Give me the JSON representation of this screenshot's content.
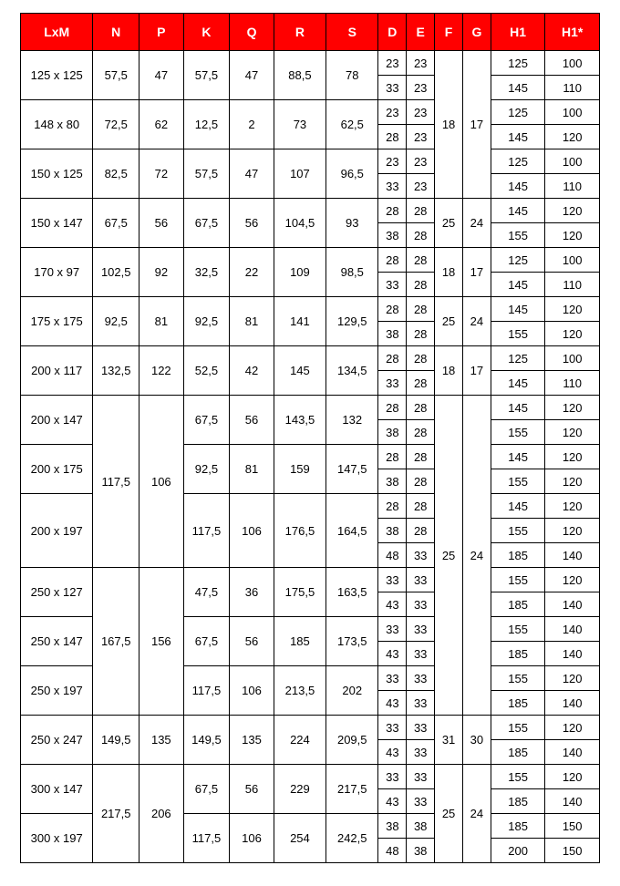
{
  "headers": [
    "LxM",
    "N",
    "P",
    "K",
    "Q",
    "R",
    "S",
    "D",
    "E",
    "F",
    "G",
    "H1",
    "H1*"
  ],
  "colClasses": [
    "c-lxm",
    "c-n",
    "c-p",
    "c-k",
    "c-q",
    "c-r",
    "c-s",
    "c-d",
    "c-e",
    "c-f",
    "c-g",
    "c-h1",
    "c-h1s"
  ],
  "style": {
    "header_bg": "#ff0000",
    "header_fg": "#ffffff",
    "border_color": "#000000",
    "background": "#ffffff",
    "font_family": "Arial",
    "header_fontsize": 14,
    "cell_fontsize": 13
  },
  "blocks": [
    {
      "f": "18",
      "g": "17",
      "fg_rowspan": 6,
      "rows": [
        {
          "lxm": "125 x 125",
          "n": "57,5",
          "p": "47",
          "k": "57,5",
          "q": "47",
          "r": "88,5",
          "s": "78",
          "de": [
            [
              "23",
              "23"
            ],
            [
              "33",
              "23"
            ]
          ],
          "h1": [
            "125",
            "145"
          ],
          "h1s": [
            "100",
            "110"
          ]
        },
        {
          "lxm": "148 x  80",
          "n": "72,5",
          "p": "62",
          "k": "12,5",
          "q": "2",
          "r": "73",
          "s": "62,5",
          "de": [
            [
              "23",
              "23"
            ],
            [
              "28",
              "23"
            ]
          ],
          "h1": [
            "125",
            "145"
          ],
          "h1s": [
            "100",
            "120"
          ]
        },
        {
          "lxm": "150 x 125",
          "n": "82,5",
          "p": "72",
          "k": "57,5",
          "q": "47",
          "r": "107",
          "s": "96,5",
          "de": [
            [
              "23",
              "23"
            ],
            [
              "33",
              "23"
            ]
          ],
          "h1": [
            "125",
            "145"
          ],
          "h1s": [
            "100",
            "110"
          ]
        }
      ]
    },
    {
      "f": "25",
      "g": "24",
      "fg_rowspan": 2,
      "rows": [
        {
          "lxm": "150 x 147",
          "n": "67,5",
          "p": "56",
          "k": "67,5",
          "q": "56",
          "r": "104,5",
          "s": "93",
          "de": [
            [
              "28",
              "28"
            ],
            [
              "38",
              "28"
            ]
          ],
          "h1": [
            "145",
            "155"
          ],
          "h1s": [
            "120",
            "120"
          ]
        }
      ]
    },
    {
      "f": "18",
      "g": "17",
      "fg_rowspan": 2,
      "rows": [
        {
          "lxm": "170 x  97",
          "n": "102,5",
          "p": "92",
          "k": "32,5",
          "q": "22",
          "r": "109",
          "s": "98,5",
          "de": [
            [
              "28",
              "28"
            ],
            [
              "33",
              "28"
            ]
          ],
          "h1": [
            "125",
            "145"
          ],
          "h1s": [
            "100",
            "110"
          ]
        }
      ]
    },
    {
      "f": "25",
      "g": "24",
      "fg_rowspan": 2,
      "rows": [
        {
          "lxm": "175 x 175",
          "n": "92,5",
          "p": "81",
          "k": "92,5",
          "q": "81",
          "r": "141",
          "s": "129,5",
          "de": [
            [
              "28",
              "28"
            ],
            [
              "38",
              "28"
            ]
          ],
          "h1": [
            "145",
            "155"
          ],
          "h1s": [
            "120",
            "120"
          ]
        }
      ]
    },
    {
      "f": "18",
      "g": "17",
      "fg_rowspan": 2,
      "rows": [
        {
          "lxm": "200 x 117",
          "n": "132,5",
          "p": "122",
          "k": "52,5",
          "q": "42",
          "r": "145",
          "s": "134,5",
          "de": [
            [
              "28",
              "28"
            ],
            [
              "33",
              "28"
            ]
          ],
          "h1": [
            "125",
            "145"
          ],
          "h1s": [
            "100",
            "110"
          ]
        }
      ]
    },
    {
      "type": "group3",
      "n": "117,5",
      "p": "106",
      "f": "25",
      "g": "24",
      "fg_rowspan": 13,
      "rows": [
        {
          "lxm": "200 x 147",
          "k": "67,5",
          "q": "56",
          "r": "143,5",
          "s": "132",
          "de": [
            [
              "28",
              "28"
            ],
            [
              "38",
              "28"
            ]
          ],
          "h1": [
            "145",
            "155"
          ],
          "h1s": [
            "120",
            "120"
          ]
        },
        {
          "lxm": "200 x 175",
          "k": "92,5",
          "q": "81",
          "r": "159",
          "s": "147,5",
          "de": [
            [
              "28",
              "28"
            ],
            [
              "38",
              "28"
            ]
          ],
          "h1": [
            "145",
            "155"
          ],
          "h1s": [
            "120",
            "120"
          ]
        },
        {
          "lxm": "200 x 197",
          "k": "117,5",
          "q": "106",
          "r": "176,5",
          "s": "164,5",
          "de": [
            [
              "28",
              "28"
            ],
            [
              "38",
              "28"
            ],
            [
              "48",
              "33"
            ]
          ],
          "h1": [
            "145",
            "155",
            "185"
          ],
          "h1s": [
            "120",
            "120",
            "140"
          ]
        }
      ]
    },
    {
      "type": "group3b",
      "n": "167,5",
      "p": "156",
      "rows": [
        {
          "lxm": "250 x 127",
          "k": "47,5",
          "q": "36",
          "r": "175,5",
          "s": "163,5",
          "de": [
            [
              "33",
              "33"
            ],
            [
              "43",
              "33"
            ]
          ],
          "h1": [
            "155",
            "185"
          ],
          "h1s": [
            "120",
            "140"
          ]
        },
        {
          "lxm": "250 x 147",
          "k": "67,5",
          "q": "56",
          "r": "185",
          "s": "173,5",
          "de": [
            [
              "33",
              "33"
            ],
            [
              "43",
              "33"
            ]
          ],
          "h1": [
            "155",
            "185"
          ],
          "h1s": [
            "140",
            "140"
          ]
        },
        {
          "lxm": "250 x 197",
          "k": "117,5",
          "q": "106",
          "r": "213,5",
          "s": "202",
          "de": [
            [
              "33",
              "33"
            ],
            [
              "43",
              "33"
            ]
          ],
          "h1": [
            "155",
            "185"
          ],
          "h1s": [
            "120",
            "140"
          ]
        }
      ]
    },
    {
      "f": "31",
      "g": "30",
      "fg_rowspan": 2,
      "rows": [
        {
          "lxm": "250 x 247",
          "n": "149,5",
          "p": "135",
          "k": "149,5",
          "q": "135",
          "r": "224",
          "s": "209,5",
          "de": [
            [
              "33",
              "33"
            ],
            [
              "43",
              "33"
            ]
          ],
          "h1": [
            "155",
            "185"
          ],
          "h1s": [
            "120",
            "140"
          ]
        }
      ]
    },
    {
      "type": "group2",
      "n": "217,5",
      "p": "206",
      "f": "25",
      "g": "24",
      "fg_rowspan": 4,
      "rows": [
        {
          "lxm": "300 x 147",
          "k": "67,5",
          "q": "56",
          "r": "229",
          "s": "217,5",
          "de": [
            [
              "33",
              "33"
            ],
            [
              "43",
              "33"
            ]
          ],
          "h1": [
            "155",
            "185"
          ],
          "h1s": [
            "120",
            "140"
          ]
        },
        {
          "lxm": "300 x 197",
          "k": "117,5",
          "q": "106",
          "r": "254",
          "s": "242,5",
          "de": [
            [
              "38",
              "38"
            ],
            [
              "48",
              "38"
            ]
          ],
          "h1": [
            "185",
            "200"
          ],
          "h1s": [
            "150",
            "150"
          ]
        }
      ]
    }
  ]
}
